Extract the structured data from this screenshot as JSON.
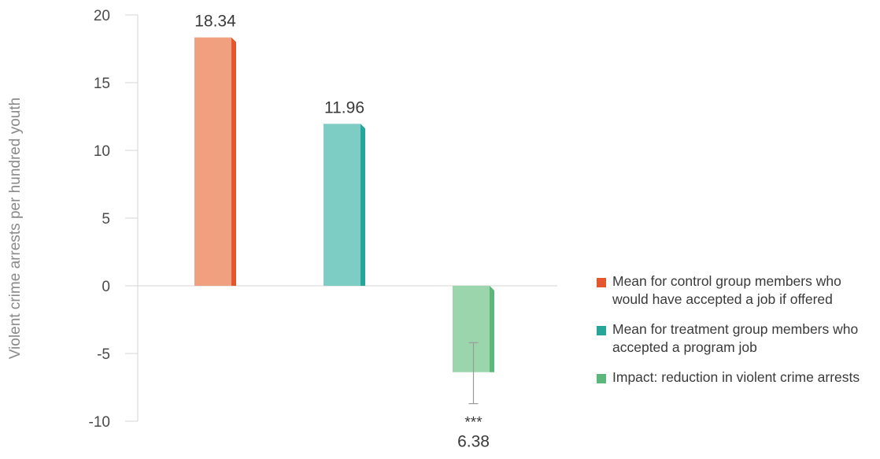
{
  "chart_data": {
    "type": "bar",
    "title": "",
    "xlabel": "",
    "ylabel": "Violent crime arrests per hundred youth",
    "ylim": [
      -10,
      20
    ],
    "yticks": [
      20,
      15,
      10,
      5,
      0,
      -5,
      -10
    ],
    "grid": false,
    "legend_position": "right",
    "series": [
      {
        "name": "Mean for control group members who would have accepted a job if offered",
        "value": 18.34,
        "label": "18.34",
        "color": "#f0a07e",
        "side_color": "#e4572e"
      },
      {
        "name": "Mean for treatment group members who accepted a program job",
        "value": 11.96,
        "label": "11.96",
        "color": "#7ecdc5",
        "side_color": "#26a69a"
      },
      {
        "name": "Impact: reduction in violent crime arrests",
        "value": -6.38,
        "label": "6.38",
        "significance": "***",
        "error_bar": [
          -8.7,
          -4.2
        ],
        "color": "#9bd5ac",
        "side_color": "#5cb87a"
      }
    ]
  },
  "legend": {
    "items": [
      {
        "label": "Mean for control group members who would have accepted a job if offered",
        "color": "#e4572e"
      },
      {
        "label": "Mean for treatment group members who accepted a program job",
        "color": "#26a69a"
      },
      {
        "label": "Impact: reduction in violent crime arrests",
        "color": "#5cb87a"
      }
    ]
  }
}
